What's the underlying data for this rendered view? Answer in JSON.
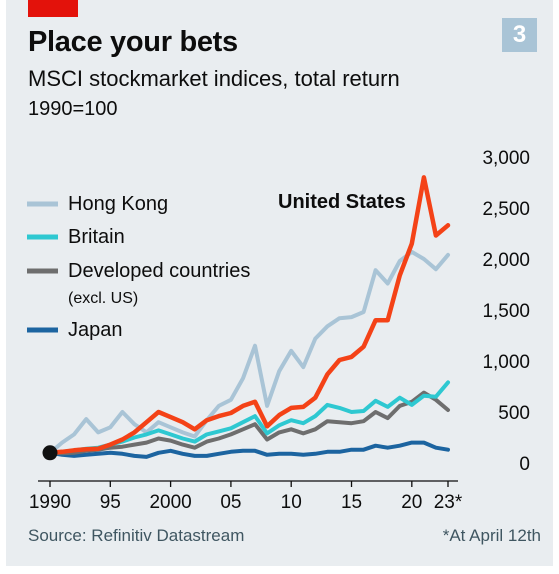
{
  "header": {
    "title": "Place your bets",
    "subtitle": "MSCI stockmarket indices, total return",
    "unit": "1990=100",
    "badge": "3"
  },
  "footer": {
    "source": "Source: Refinitiv Datastream",
    "note": "*At April 12th"
  },
  "colors": {
    "panel": "#e9edf0",
    "accent_red": "#e3120b",
    "hong_kong": "#a9c4d6",
    "britain": "#2ec8d1",
    "developed": "#6e6e6e",
    "japan": "#1c64a0",
    "united_states": "#f44217"
  },
  "chart_data": {
    "type": "line",
    "x": [
      1990,
      1991,
      1992,
      1993,
      1994,
      1995,
      1996,
      1997,
      1998,
      1999,
      2000,
      2001,
      2002,
      2003,
      2004,
      2005,
      2006,
      2007,
      2008,
      2009,
      2010,
      2011,
      2012,
      2013,
      2014,
      2015,
      2016,
      2017,
      2018,
      2019,
      2020,
      2021,
      2022,
      2023
    ],
    "x_ticks": [
      1990,
      1995,
      2000,
      2005,
      2010,
      2015,
      2020,
      2023
    ],
    "x_tick_labels": [
      "1990",
      "95",
      "2000",
      "05",
      "10",
      "15",
      "20",
      "23*"
    ],
    "y_ticks": [
      0,
      500,
      1000,
      1500,
      2000,
      2500,
      3000
    ],
    "y_tick_labels": [
      "0",
      "500",
      "1,000",
      "1,500",
      "2,000",
      "2,500",
      "3,000"
    ],
    "ylim": [
      0,
      3000
    ],
    "base_point": {
      "x": 1990,
      "y": 100
    },
    "series": [
      {
        "name": "Hong Kong",
        "color": "#a9c4d6",
        "values": [
          100,
          200,
          280,
          430,
          300,
          350,
          500,
          380,
          300,
          400,
          350,
          300,
          260,
          420,
          560,
          620,
          830,
          1150,
          560,
          900,
          1100,
          940,
          1220,
          1340,
          1420,
          1430,
          1480,
          1890,
          1760,
          1980,
          2070,
          2000,
          1900,
          2040
        ]
      },
      {
        "name": "Britain",
        "color": "#2ec8d1",
        "values": [
          100,
          110,
          125,
          140,
          150,
          180,
          210,
          250,
          280,
          320,
          280,
          240,
          210,
          280,
          310,
          340,
          400,
          460,
          290,
          370,
          420,
          390,
          460,
          570,
          540,
          500,
          510,
          610,
          550,
          640,
          570,
          660,
          650,
          790
        ]
      },
      {
        "name": "Developed countries",
        "sublabel": "(excl. US)",
        "color": "#6e6e6e",
        "values": [
          100,
          95,
          100,
          120,
          130,
          150,
          160,
          180,
          200,
          240,
          220,
          180,
          150,
          210,
          240,
          280,
          330,
          380,
          230,
          300,
          330,
          290,
          330,
          410,
          400,
          390,
          410,
          500,
          440,
          560,
          600,
          690,
          620,
          520
        ]
      },
      {
        "name": "Japan",
        "color": "#1c64a0",
        "values": [
          100,
          80,
          70,
          80,
          90,
          100,
          90,
          70,
          60,
          100,
          120,
          90,
          70,
          70,
          90,
          110,
          120,
          120,
          80,
          90,
          90,
          80,
          90,
          110,
          110,
          130,
          130,
          170,
          150,
          170,
          200,
          200,
          150,
          130
        ]
      },
      {
        "name": "United States",
        "label_on_chart": "United States",
        "color": "#f44217",
        "values": [
          100,
          110,
          125,
          135,
          140,
          180,
          230,
          300,
          400,
          500,
          450,
          400,
          330,
          420,
          460,
          490,
          560,
          600,
          360,
          470,
          540,
          550,
          640,
          870,
          1010,
          1040,
          1140,
          1400,
          1400,
          1840,
          2150,
          2800,
          2230,
          2330
        ]
      }
    ],
    "legend": {
      "placement": "left",
      "items": [
        "Hong Kong",
        "Britain",
        "Developed countries",
        "Japan"
      ]
    },
    "grid": false
  }
}
